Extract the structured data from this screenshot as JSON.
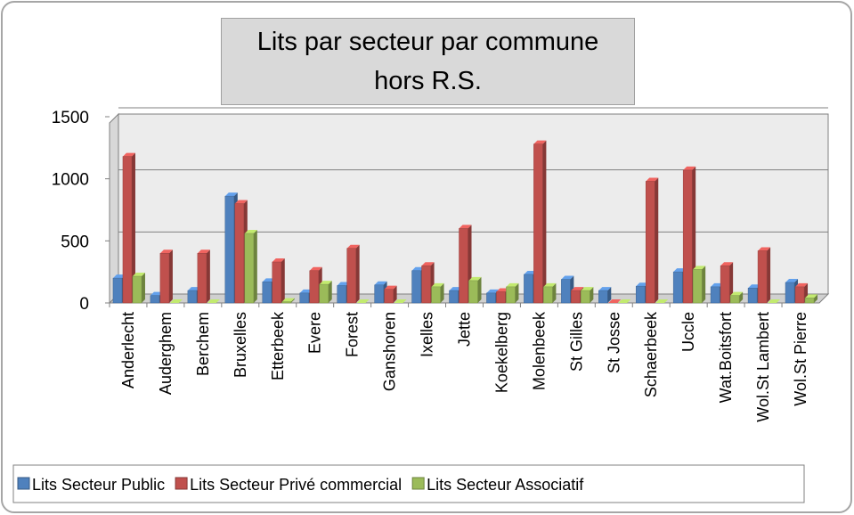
{
  "chart_data": {
    "type": "bar",
    "title": "Lits par secteur par commune hors R.S.",
    "categories": [
      "Anderlecht",
      "Auderghem",
      "Berchem",
      "Bruxelles",
      "Etterbeek",
      "Evere",
      "Forest",
      "Ganshoren",
      "Ixelles",
      "Jette",
      "Koekelberg",
      "Molenbeek",
      "St Gilles",
      "St Josse",
      "Schaerbeek",
      "Uccle",
      "Wat.Boitsfort",
      "Wol.St Lambert",
      "Wol.St Pierre"
    ],
    "series": [
      {
        "name": "Lits Secteur Public",
        "color": "#4f81bd",
        "values": [
          200,
          60,
          100,
          860,
          170,
          80,
          140,
          145,
          260,
          100,
          80,
          230,
          190,
          100,
          135,
          250,
          130,
          120,
          165
        ]
      },
      {
        "name": "Lits Secteur Privé commercial",
        "color": "#c0504d",
        "values": [
          1180,
          400,
          400,
          800,
          330,
          260,
          440,
          110,
          300,
          600,
          90,
          1280,
          100,
          0,
          980,
          1070,
          300,
          420,
          130
        ]
      },
      {
        "name": "Lits Secteur Associatif",
        "color": "#9bbb59",
        "values": [
          215,
          0,
          0,
          560,
          10,
          150,
          0,
          0,
          130,
          180,
          130,
          130,
          100,
          0,
          0,
          270,
          60,
          0,
          40
        ]
      }
    ],
    "ylim": [
      0,
      1500
    ],
    "yticks": [
      0,
      500,
      1000,
      1500
    ],
    "grid": true,
    "legend": "bottom"
  }
}
